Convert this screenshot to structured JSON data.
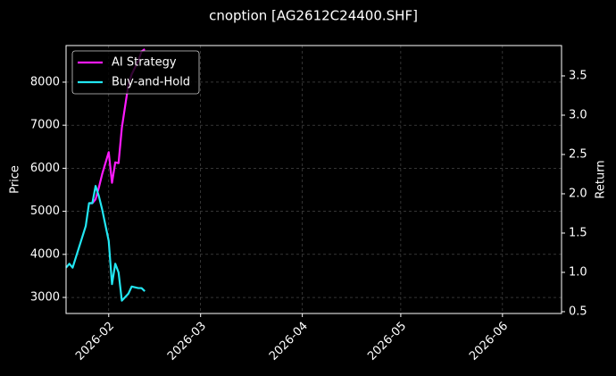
{
  "chart_data": {
    "type": "line",
    "title": "cnoption [AG2612C24400.SHF]",
    "ylabel": "Price",
    "y2label": "Return",
    "x": [
      "2026-01-19",
      "2026-01-20",
      "2026-01-21",
      "2026-01-25",
      "2026-01-26",
      "2026-01-27",
      "2026-01-28",
      "2026-01-29",
      "2026-01-30",
      "2026-02-01",
      "2026-02-02",
      "2026-02-03",
      "2026-02-04",
      "2026-02-05",
      "2026-02-07",
      "2026-02-08",
      "2026-02-10",
      "2026-02-11",
      "2026-02-12"
    ],
    "series": [
      {
        "name": "AI Strategy",
        "color": "#ff1aff",
        "axis": "y2",
        "values": [
          null,
          null,
          null,
          null,
          1.88,
          1.88,
          1.93,
          2.08,
          2.25,
          2.53,
          2.14,
          2.4,
          2.39,
          2.84,
          3.39,
          3.52,
          3.69,
          3.81,
          3.84
        ]
      },
      {
        "name": "Buy-and-Hold",
        "color": "#22e6f2",
        "axis": "y2",
        "values": [
          1.06,
          1.11,
          1.06,
          1.59,
          1.88,
          1.88,
          2.1,
          1.97,
          1.8,
          1.4,
          0.85,
          1.11,
          1.0,
          0.64,
          0.73,
          0.82,
          0.8,
          0.8,
          0.76
        ]
      }
    ],
    "xlim": [
      "2026-01-19",
      "2026-06-19"
    ],
    "xticks": [
      {
        "value": "2026-02-01",
        "label": "2026-02"
      },
      {
        "value": "2026-03-01",
        "label": "2026-03"
      },
      {
        "value": "2026-04-01",
        "label": "2026-04"
      },
      {
        "value": "2026-05-01",
        "label": "2026-05"
      },
      {
        "value": "2026-06-01",
        "label": "2026-06"
      }
    ],
    "ylim": [
      2627,
      8850
    ],
    "yticks": [
      3000,
      4000,
      5000,
      6000,
      7000,
      8000
    ],
    "y2lim": [
      0.477,
      3.886
    ],
    "y2ticks": [
      0.5,
      {
        "value": 1,
        "label": "1.0"
      },
      1.5,
      {
        "value": 2,
        "label": "2.0"
      },
      2.5,
      {
        "value": 3,
        "label": "3.0"
      },
      3.5
    ],
    "grid": true,
    "legend": "upper left"
  }
}
